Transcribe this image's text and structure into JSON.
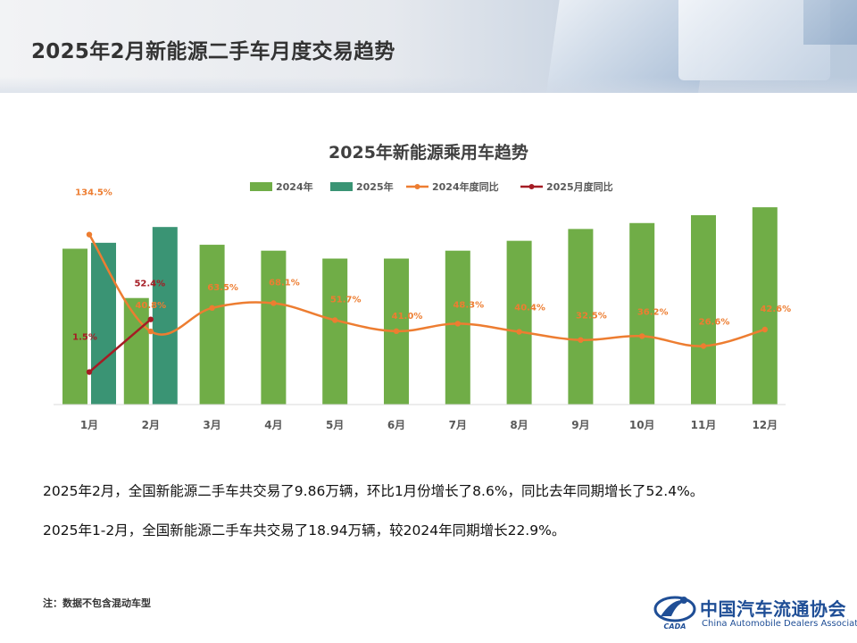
{
  "page": {
    "title": "2025年2月新能源二手车月度交易趋势",
    "paragraphs": [
      "2025年2月，全国新能源二手车共交易了9.86万辆，环比1月份增长了8.6%，同比去年同期增长了52.4%。",
      "2025年1-2月，全国新能源二手车共交易了18.94万辆，较2024年同期增长22.9%。"
    ],
    "footnote": "注：数据不包含混动车型",
    "logo": {
      "cn": "中国汽车流通协会",
      "en": "China Automobile Dealers Association",
      "mark_text": "CADA"
    }
  },
  "chart_data": {
    "type": "bar",
    "title": "2025年新能源乘用车趋势",
    "categories": [
      "1月",
      "2月",
      "3月",
      "4月",
      "5月",
      "6月",
      "7月",
      "8月",
      "9月",
      "10月",
      "11月",
      "12月"
    ],
    "series": [
      {
        "name": "2024年",
        "type": "bar",
        "axis": "left",
        "color": "#70ad47",
        "values": [
          7.9,
          5.4,
          8.1,
          7.8,
          7.4,
          7.4,
          7.8,
          8.3,
          8.9,
          9.2,
          9.6,
          10.0
        ]
      },
      {
        "name": "2025年",
        "type": "bar",
        "axis": "left",
        "color": "#3a9474",
        "values": [
          8.2,
          9.0,
          null,
          null,
          null,
          null,
          null,
          null,
          null,
          null,
          null,
          null
        ]
      },
      {
        "name": "2024年度同比",
        "type": "line",
        "axis": "right",
        "color": "#ed7d31",
        "values": [
          134.5,
          40.8,
          63.5,
          68.1,
          51.7,
          41.0,
          48.3,
          40.4,
          32.5,
          36.2,
          26.6,
          42.6
        ],
        "labels": [
          "134.5%",
          "40.8%",
          "63.5%",
          "68.1%",
          "51.7%",
          "41.0%",
          "48.3%",
          "40.4%",
          "32.5%",
          "36.2%",
          "26.6%",
          "42.6%"
        ]
      },
      {
        "name": "2025月度同比",
        "type": "line",
        "axis": "right",
        "color": "#a51c24",
        "values": [
          1.5,
          52.4,
          null,
          null,
          null,
          null,
          null,
          null,
          null,
          null,
          null,
          null
        ],
        "labels": [
          "1.5%",
          "52.4%",
          null,
          null,
          null,
          null,
          null,
          null,
          null,
          null,
          null,
          null
        ]
      }
    ],
    "ylim_left": [
      0,
      11
    ],
    "ylim_right": [
      -30,
      180
    ],
    "legend_position": "top-center",
    "grid": false
  }
}
